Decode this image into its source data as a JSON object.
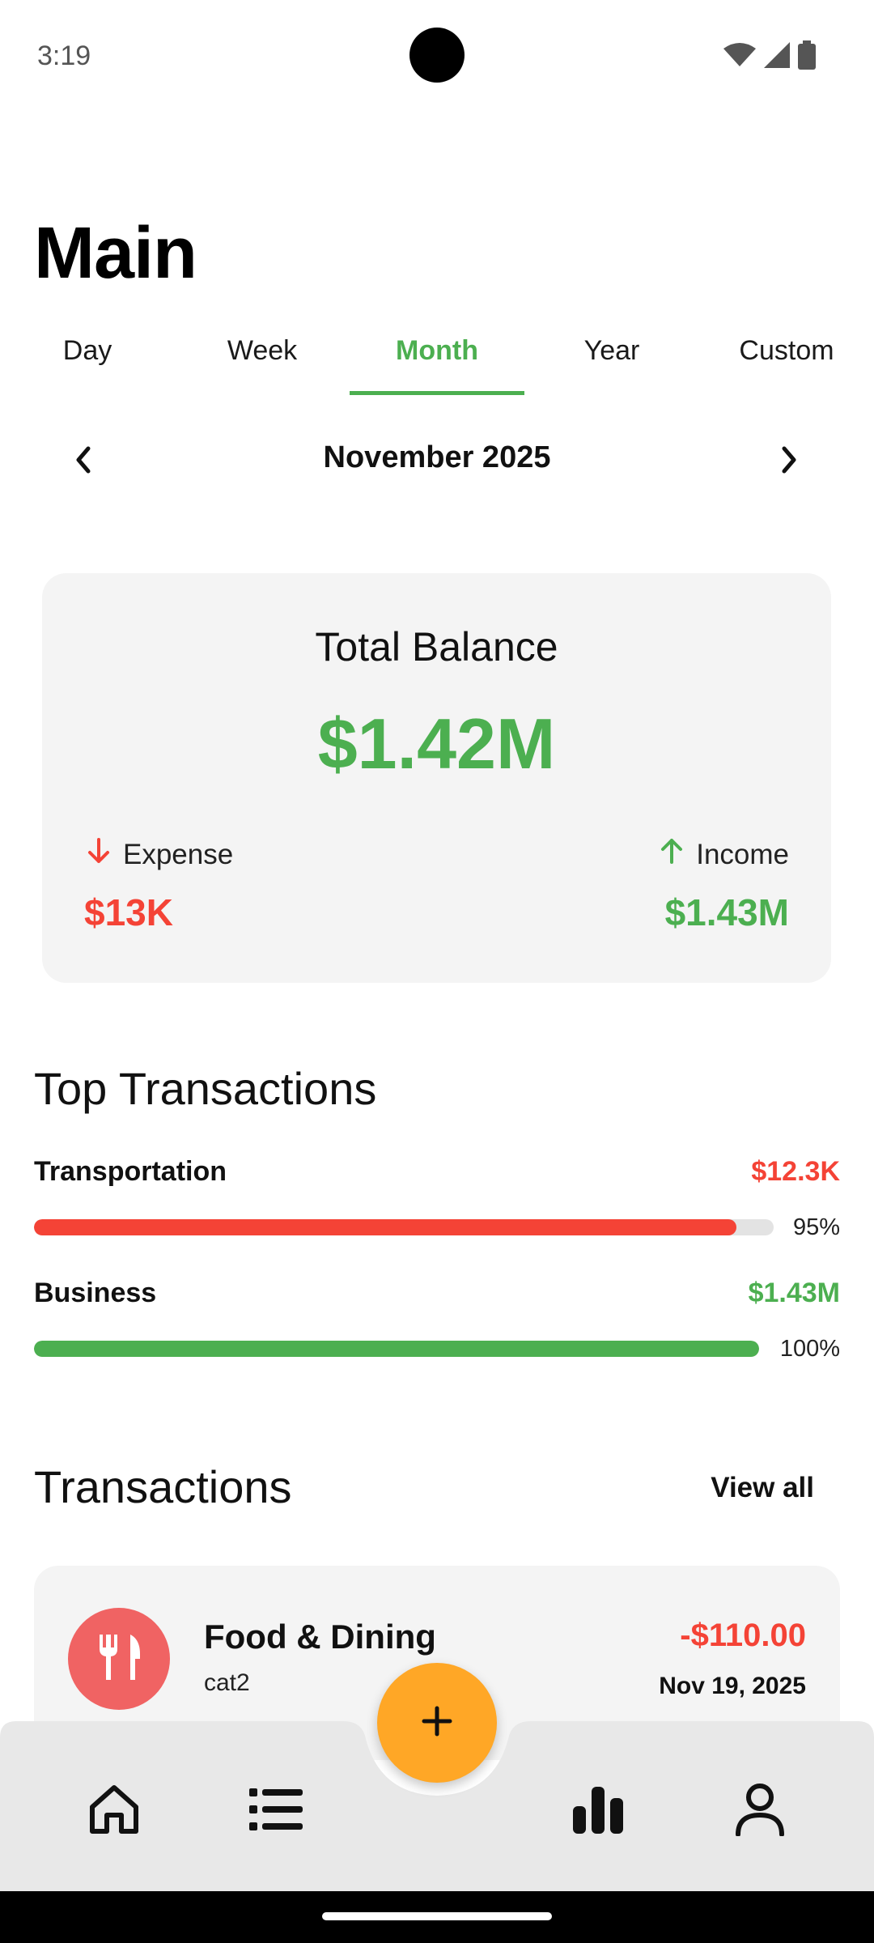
{
  "status_bar": {
    "time": "3:19",
    "icons": [
      "wifi-icon",
      "cellular-signal-icon",
      "battery-icon"
    ]
  },
  "page": {
    "title": "Main"
  },
  "tabs": [
    {
      "label": "Day",
      "active": false
    },
    {
      "label": "Week",
      "active": false
    },
    {
      "label": "Month",
      "active": true
    },
    {
      "label": "Year",
      "active": false
    },
    {
      "label": "Custom",
      "active": false
    }
  ],
  "period": {
    "label": "November 2025",
    "prev_icon": "chevron-left-icon",
    "next_icon": "chevron-right-icon"
  },
  "balance": {
    "label": "Total Balance",
    "value": "$1.42M",
    "expense_label": "Expense",
    "expense_value": "$13K",
    "income_label": "Income",
    "income_value": "$1.43M"
  },
  "top_transactions": {
    "title": "Top Transactions",
    "items": [
      {
        "label": "Transportation",
        "amount": "$12.3K",
        "percent_label": "95%",
        "percent": 95,
        "type": "expense"
      },
      {
        "label": "Business",
        "amount": "$1.43M",
        "percent_label": "100%",
        "percent": 100,
        "type": "income"
      }
    ]
  },
  "transactions": {
    "title": "Transactions",
    "view_all_label": "View all",
    "items": [
      {
        "name": "Food & Dining",
        "subtitle": "cat2",
        "amount": "-$110.00",
        "date": "Nov 19, 2025",
        "icon": "cutlery-icon"
      }
    ]
  },
  "bottom_nav": {
    "items": [
      "home-icon",
      "list-icon",
      "bar-chart-icon",
      "profile-icon"
    ],
    "fab_icon": "plus-icon"
  },
  "colors": {
    "accent_green": "#4caf50",
    "expense_red": "#f44336",
    "fab_orange": "#ffa726",
    "card_bg": "#f4f4f4",
    "category_icon_bg": "#f06363"
  }
}
